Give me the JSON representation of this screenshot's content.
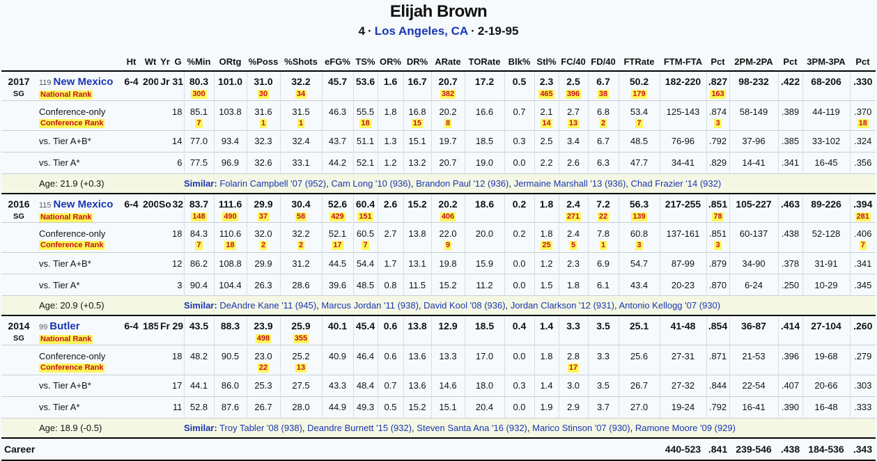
{
  "header": {
    "name": "Elijah Brown",
    "jersey": "4",
    "hometown": "Los Angeles, CA",
    "born": "2-19-95",
    "separator": "·"
  },
  "columns": [
    "Ht",
    "Wt",
    "Yr",
    "G",
    "%Min",
    "ORtg",
    "%Poss",
    "%Shots",
    "eFG%",
    "TS%",
    "OR%",
    "DR%",
    "ARate",
    "TORate",
    "Blk%",
    "Stl%",
    "FC/40",
    "FD/40",
    "FTRate",
    "FTM-FTA",
    "Pct",
    "2PM-2PA",
    "Pct",
    "3PM-3PA",
    "Pct"
  ],
  "list_separator": ", ",
  "seasons": [
    {
      "year": "2017",
      "position": "SG",
      "team_rank": "119",
      "team": "New Mexico",
      "height": "6-4",
      "weight": "200",
      "class": "Jr",
      "games": "31",
      "rank_label": "National Rank",
      "stats": [
        "80.3",
        "101.0",
        "31.0",
        "32.2",
        "45.7",
        "53.6",
        "1.6",
        "16.7",
        "20.7",
        "17.2",
        "0.5",
        "2.3",
        "2.5",
        "6.7",
        "50.2",
        "182-220",
        ".827",
        "98-232",
        ".422",
        "68-206",
        ".330"
      ],
      "ranks": [
        300,
        null,
        30,
        34,
        null,
        null,
        null,
        null,
        382,
        null,
        null,
        465,
        396,
        38,
        179,
        null,
        163,
        null,
        null,
        null,
        null
      ],
      "splits": [
        {
          "label": "Conference-only",
          "rank_label": "Conference Rank",
          "games": "18",
          "stats": [
            "85.1",
            "103.8",
            "31.6",
            "31.5",
            "46.3",
            "55.5",
            "1.8",
            "16.8",
            "20.2",
            "16.6",
            "0.7",
            "2.1",
            "2.7",
            "6.8",
            "53.4",
            "125-143",
            ".874",
            "58-149",
            ".389",
            "44-119",
            ".370"
          ],
          "ranks": [
            7,
            null,
            1,
            1,
            null,
            18,
            null,
            15,
            8,
            null,
            null,
            14,
            13,
            2,
            7,
            null,
            3,
            null,
            null,
            null,
            18
          ]
        },
        {
          "label": "vs. Tier A+B*",
          "games": "14",
          "stats": [
            "77.0",
            "93.4",
            "32.3",
            "32.4",
            "43.7",
            "51.1",
            "1.3",
            "15.1",
            "19.7",
            "18.5",
            "0.3",
            "2.5",
            "3.4",
            "6.7",
            "48.5",
            "76-96",
            ".792",
            "37-96",
            ".385",
            "33-102",
            ".324"
          ]
        },
        {
          "label": "vs. Tier A*",
          "games": "6",
          "stats": [
            "77.5",
            "96.9",
            "32.6",
            "33.1",
            "44.2",
            "52.1",
            "1.2",
            "13.2",
            "20.7",
            "19.0",
            "0.0",
            "2.2",
            "2.6",
            "6.3",
            "47.7",
            "34-41",
            ".829",
            "14-41",
            ".341",
            "16-45",
            ".356"
          ]
        }
      ],
      "age": "Age: 21.9 (+0.3)",
      "similar_label": "Similar:",
      "similar": [
        "Folarin Campbell '07 (952)",
        "Cam Long '10 (936)",
        "Brandon Paul '12 (936)",
        "Jermaine Marshall '13 (936)",
        "Chad Frazier '14 (932)"
      ]
    },
    {
      "year": "2016",
      "position": "SG",
      "team_rank": "115",
      "team": "New Mexico",
      "height": "6-4",
      "weight": "200",
      "class": "So",
      "games": "32",
      "rank_label": "National Rank",
      "stats": [
        "83.7",
        "111.6",
        "29.9",
        "30.4",
        "52.6",
        "60.4",
        "2.6",
        "15.2",
        "20.2",
        "18.6",
        "0.2",
        "1.8",
        "2.4",
        "7.2",
        "56.3",
        "217-255",
        ".851",
        "105-227",
        ".463",
        "89-226",
        ".394"
      ],
      "ranks": [
        148,
        490,
        37,
        58,
        429,
        151,
        null,
        null,
        406,
        null,
        null,
        null,
        271,
        22,
        139,
        null,
        78,
        null,
        null,
        null,
        281
      ],
      "splits": [
        {
          "label": "Conference-only",
          "rank_label": "Conference Rank",
          "games": "18",
          "stats": [
            "84.3",
            "110.6",
            "32.0",
            "32.2",
            "52.1",
            "60.5",
            "2.7",
            "13.8",
            "22.0",
            "20.0",
            "0.2",
            "1.8",
            "2.4",
            "7.8",
            "60.8",
            "137-161",
            ".851",
            "60-137",
            ".438",
            "52-128",
            ".406"
          ],
          "ranks": [
            7,
            18,
            2,
            2,
            17,
            7,
            null,
            null,
            9,
            null,
            null,
            25,
            5,
            1,
            3,
            null,
            3,
            null,
            null,
            null,
            7
          ]
        },
        {
          "label": "vs. Tier A+B*",
          "games": "12",
          "stats": [
            "86.2",
            "108.8",
            "29.9",
            "31.2",
            "44.5",
            "54.4",
            "1.7",
            "13.1",
            "19.8",
            "15.9",
            "0.0",
            "1.2",
            "2.3",
            "6.9",
            "54.7",
            "87-99",
            ".879",
            "34-90",
            ".378",
            "31-91",
            ".341"
          ]
        },
        {
          "label": "vs. Tier A*",
          "games": "3",
          "stats": [
            "90.4",
            "104.4",
            "26.3",
            "28.6",
            "39.6",
            "48.5",
            "0.8",
            "11.5",
            "15.2",
            "11.2",
            "0.0",
            "1.5",
            "1.8",
            "6.1",
            "43.4",
            "20-23",
            ".870",
            "6-24",
            ".250",
            "10-29",
            ".345"
          ]
        }
      ],
      "age": "Age: 20.9 (+0.5)",
      "similar_label": "Similar:",
      "similar": [
        "DeAndre Kane '11 (945)",
        "Marcus Jordan '11 (938)",
        "David Kool '08 (936)",
        "Jordan Clarkson '12 (931)",
        "Antonio Kellogg '07 (930)"
      ]
    },
    {
      "year": "2014",
      "position": "SG",
      "team_rank": "99",
      "team": "Butler",
      "height": "6-4",
      "weight": "185",
      "class": "Fr",
      "games": "29",
      "rank_label": "National Rank",
      "stats": [
        "43.5",
        "88.3",
        "23.9",
        "25.9",
        "40.1",
        "45.4",
        "0.6",
        "13.8",
        "12.9",
        "18.5",
        "0.4",
        "1.4",
        "3.3",
        "3.5",
        "25.1",
        "41-48",
        ".854",
        "36-87",
        ".414",
        "27-104",
        ".260"
      ],
      "ranks": [
        null,
        null,
        498,
        355,
        null,
        null,
        null,
        null,
        null,
        null,
        null,
        null,
        null,
        null,
        null,
        null,
        null,
        null,
        null,
        null,
        null
      ],
      "splits": [
        {
          "label": "Conference-only",
          "rank_label": "Conference Rank",
          "games": "18",
          "stats": [
            "48.2",
            "90.5",
            "23.0",
            "25.2",
            "40.9",
            "46.4",
            "0.6",
            "13.6",
            "13.3",
            "17.0",
            "0.0",
            "1.8",
            "2.8",
            "3.3",
            "25.6",
            "27-31",
            ".871",
            "21-53",
            ".396",
            "19-68",
            ".279"
          ],
          "ranks": [
            null,
            null,
            22,
            13,
            null,
            null,
            null,
            null,
            null,
            null,
            null,
            null,
            17,
            null,
            null,
            null,
            null,
            null,
            null,
            null,
            null
          ]
        },
        {
          "label": "vs. Tier A+B*",
          "games": "17",
          "stats": [
            "44.1",
            "86.0",
            "25.3",
            "27.5",
            "43.3",
            "48.4",
            "0.7",
            "13.6",
            "14.6",
            "18.0",
            "0.3",
            "1.4",
            "3.0",
            "3.5",
            "26.7",
            "27-32",
            ".844",
            "22-54",
            ".407",
            "20-66",
            ".303"
          ]
        },
        {
          "label": "vs. Tier A*",
          "games": "11",
          "stats": [
            "52.8",
            "87.6",
            "26.7",
            "28.0",
            "44.9",
            "49.3",
            "0.5",
            "15.2",
            "15.1",
            "20.4",
            "0.0",
            "1.9",
            "2.9",
            "3.7",
            "27.0",
            "19-24",
            ".792",
            "16-41",
            ".390",
            "16-48",
            ".333"
          ]
        }
      ],
      "age": "Age: 18.9 (-0.5)",
      "similar_label": "Similar:",
      "similar": [
        "Troy Tabler '08 (938)",
        "Deandre Burnett '15 (932)",
        "Steven Santa Ana '16 (932)",
        "Marico Stinson '07 (930)",
        "Ramone Moore '09 (929)"
      ]
    }
  ],
  "career": {
    "label": "Career",
    "stats": [
      "440-523",
      ".841",
      "239-546",
      ".438",
      "184-536",
      ".343"
    ]
  }
}
